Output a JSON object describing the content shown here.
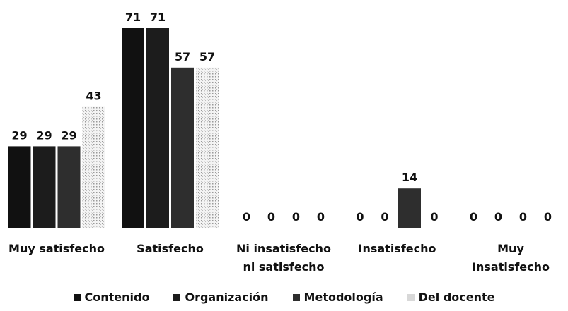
{
  "chart_data": {
    "type": "bar",
    "categories": [
      "Muy satisfecho",
      "Satisfecho",
      "Ni insatisfecho ni satisfecho",
      "Insatisfecho",
      "Muy Insatisfecho"
    ],
    "series": [
      {
        "name": "Contenido",
        "color": "#111111",
        "values": [
          29,
          71,
          0,
          0,
          0
        ]
      },
      {
        "name": "Organización",
        "color": "#1c1c1c",
        "values": [
          29,
          71,
          0,
          0,
          0
        ]
      },
      {
        "name": "Metodología",
        "color": "#2e2e2e",
        "values": [
          29,
          57,
          0,
          14,
          0
        ]
      },
      {
        "name": "Del docente",
        "color": "#d8d8d8",
        "values": [
          43,
          57,
          0,
          0,
          0
        ]
      }
    ],
    "legend": "bottom"
  }
}
